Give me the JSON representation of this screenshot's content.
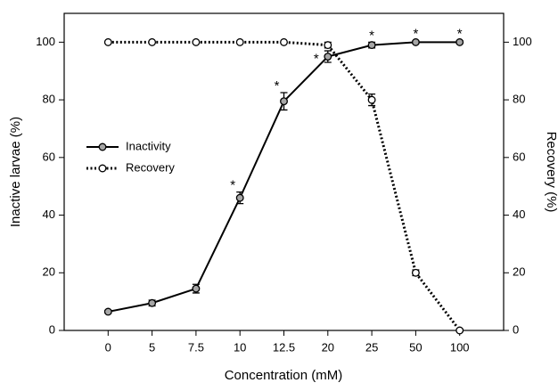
{
  "chart_data": {
    "type": "line",
    "x_label": "Concentration (mM)",
    "y_label": "Inactive larvae (%)",
    "y2_label": "Recovery (%)",
    "categories": [
      "0",
      "5",
      "7.5",
      "10",
      "12.5",
      "20",
      "25",
      "50",
      "100"
    ],
    "series": [
      {
        "name": "Inactivity",
        "color": "#000000",
        "marker_fill": "#a6a6a6",
        "linestyle": "solid",
        "values": [
          6.5,
          9.5,
          14.5,
          46,
          79.5,
          95,
          99,
          100,
          100
        ],
        "errors": [
          0.5,
          1,
          1.5,
          2,
          3,
          2,
          1,
          0.5,
          0.5
        ]
      },
      {
        "name": "Recovery",
        "color": "#000000",
        "marker_fill": "#ffffff",
        "linestyle": "dotted",
        "axis": "y2",
        "values": [
          100,
          100,
          100,
          100,
          100,
          99,
          80,
          20,
          0
        ],
        "errors": [
          0.3,
          0.3,
          0.3,
          0.3,
          0.3,
          1,
          2,
          1,
          0.5
        ]
      }
    ],
    "markers": [
      null,
      null,
      null,
      "*",
      "*",
      "*",
      "*",
      "*",
      "*"
    ],
    "ylim": [
      0,
      110
    ],
    "yticks": [
      0,
      20,
      40,
      60,
      80,
      100
    ],
    "y2lim": [
      0,
      110
    ],
    "y2ticks": [
      0,
      20,
      40,
      60,
      80,
      100
    ],
    "legend": "left"
  }
}
